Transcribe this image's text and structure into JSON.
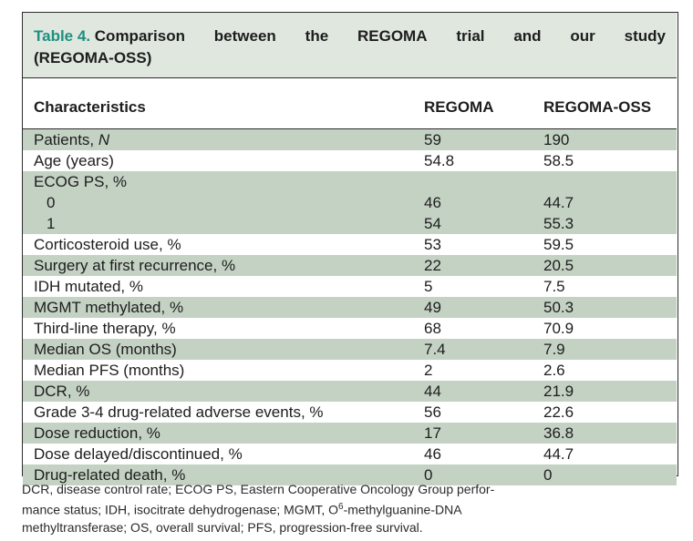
{
  "table": {
    "label": "Table 4.",
    "title_words_line1": [
      "Comparison",
      "between",
      "the",
      "REGOMA",
      "trial",
      "and",
      "our",
      "study"
    ],
    "title_line2": "(REGOMA-OSS)",
    "headers": [
      "Characteristics",
      "REGOMA",
      "REGOMA-OSS"
    ],
    "rows": [
      {
        "label": "Patients, N",
        "regoma": "59",
        "oss": "190",
        "shade": true
      },
      {
        "label": "Age (years)",
        "regoma": "54.8",
        "oss": "58.5",
        "shade": false
      },
      {
        "label": "ECOG PS, %",
        "regoma": "",
        "oss": "",
        "shade": true
      },
      {
        "label": "  0",
        "regoma": "46",
        "oss": "44.7",
        "shade": true
      },
      {
        "label": "  1",
        "regoma": "54",
        "oss": "55.3",
        "shade": true
      },
      {
        "label": "Corticosteroid use, %",
        "regoma": "53",
        "oss": "59.5",
        "shade": false
      },
      {
        "label": "Surgery at first recurrence, %",
        "regoma": "22",
        "oss": "20.5",
        "shade": true
      },
      {
        "label": "IDH mutated, %",
        "regoma": "5",
        "oss": "7.5",
        "shade": false
      },
      {
        "label": "MGMT methylated, %",
        "regoma": "49",
        "oss": "50.3",
        "shade": true
      },
      {
        "label": "Third-line therapy, %",
        "regoma": "68",
        "oss": "70.9",
        "shade": false
      },
      {
        "label": "Median OS (months)",
        "regoma": "7.4",
        "oss": "7.9",
        "shade": true
      },
      {
        "label": "Median PFS (months)",
        "regoma": "2",
        "oss": "2.6",
        "shade": false
      },
      {
        "label": "DCR, %",
        "regoma": "44",
        "oss": "21.9",
        "shade": true
      },
      {
        "label": "Grade 3-4 drug-related adverse events, %",
        "regoma": "56",
        "oss": "22.6",
        "shade": false
      },
      {
        "label": "Dose reduction, %",
        "regoma": "17",
        "oss": "36.8",
        "shade": true
      },
      {
        "label": "Dose delayed/discontinued, %",
        "regoma": "46",
        "oss": "44.7",
        "shade": false
      },
      {
        "label": "Drug-related death, %",
        "regoma": "0",
        "oss": "0",
        "shade": true
      }
    ]
  },
  "footnote": {
    "line1": "DCR, disease control rate; ECOG PS, Eastern Cooperative Oncology Group perfor-",
    "line2_a": "mance status; IDH, isocitrate dehydrogenase; MGMT, O",
    "line2_sup": "6",
    "line2_b": "-methylguanine-DNA",
    "line3": "methyltransferase; OS, overall survival; PFS, progression-free survival."
  },
  "colors": {
    "shade": "#c4d2c4",
    "title_bg": "#dfe7df",
    "label": "#1f8f80"
  }
}
